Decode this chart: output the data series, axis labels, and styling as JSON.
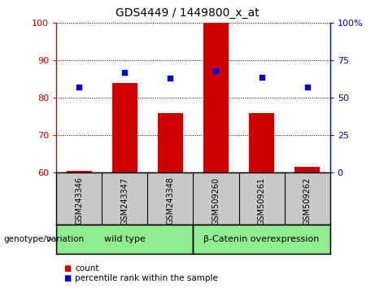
{
  "title": "GDS4449 / 1449800_x_at",
  "categories": [
    "GSM243346",
    "GSM243347",
    "GSM243348",
    "GSM509260",
    "GSM509261",
    "GSM509262"
  ],
  "bar_values": [
    60.5,
    84.0,
    76.0,
    100.0,
    76.0,
    61.5
  ],
  "percentile_values": [
    57,
    67,
    63,
    68,
    64,
    57
  ],
  "bar_color": "#CC0000",
  "percentile_color": "#0000CC",
  "ylim_left": [
    60,
    100
  ],
  "ylim_right": [
    0,
    100
  ],
  "yticks_left": [
    60,
    70,
    80,
    90,
    100
  ],
  "ytick_labels_left": [
    "60",
    "70",
    "80",
    "90",
    "100"
  ],
  "yticks_right_vals": [
    0,
    25,
    50,
    75,
    100
  ],
  "ytick_labels_right": [
    "0",
    "25",
    "50",
    "75",
    "100%"
  ],
  "group1_label": "wild type",
  "group2_label": "β-Catenin overexpression",
  "group1_color": "#90EE90",
  "group2_color": "#90EE90",
  "genotype_label": "genotype/variation",
  "legend_count": "count",
  "legend_percentile": "percentile rank within the sample",
  "plot_bg_color": "#FFFFFF",
  "tick_area_color": "#C8C8C8",
  "bar_bottom": 60,
  "bar_width": 0.55,
  "grid_color": "#000000"
}
